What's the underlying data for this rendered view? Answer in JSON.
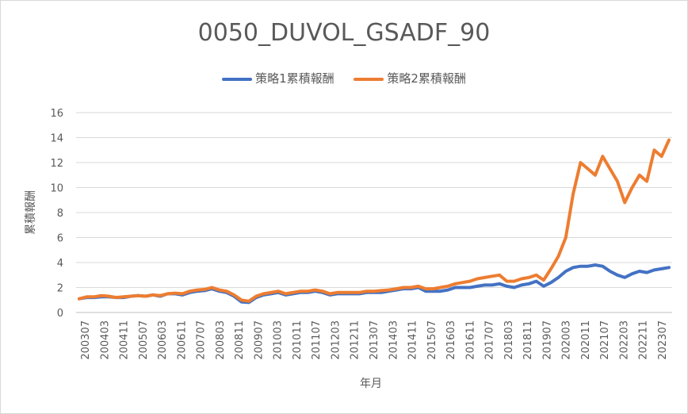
{
  "chart_data": {
    "type": "line",
    "title": "0050_DUVOL_GSADF_90",
    "xlabel": "年月",
    "ylabel": "累積報酬",
    "ylim": [
      0,
      16
    ],
    "yticks": [
      "0",
      "2",
      "4",
      "6",
      "8",
      "10",
      "12",
      "14",
      "16"
    ],
    "xticks": [
      "200307",
      "200403",
      "200411",
      "200507",
      "200603",
      "200611",
      "200707",
      "200803",
      "200811",
      "200907",
      "201003",
      "201011",
      "201107",
      "201203",
      "201211",
      "201307",
      "201403",
      "201411",
      "201507",
      "201603",
      "201611",
      "201707",
      "201803",
      "201811",
      "201907",
      "202003",
      "202011",
      "202107",
      "202203",
      "202211",
      "202307"
    ],
    "grid": true,
    "legend_position": "top",
    "series": [
      {
        "name": "策略1累積報酬",
        "color": "#4472c4",
        "values": [
          1.1,
          1.2,
          1.2,
          1.25,
          1.25,
          1.2,
          1.2,
          1.3,
          1.35,
          1.3,
          1.4,
          1.3,
          1.5,
          1.5,
          1.4,
          1.6,
          1.7,
          1.75,
          1.9,
          1.7,
          1.6,
          1.3,
          0.85,
          0.8,
          1.2,
          1.4,
          1.5,
          1.6,
          1.4,
          1.5,
          1.6,
          1.6,
          1.7,
          1.6,
          1.4,
          1.5,
          1.5,
          1.5,
          1.5,
          1.6,
          1.6,
          1.6,
          1.7,
          1.8,
          1.9,
          1.9,
          2.0,
          1.7,
          1.7,
          1.7,
          1.8,
          2.0,
          2.0,
          2.0,
          2.1,
          2.2,
          2.2,
          2.3,
          2.1,
          2.0,
          2.2,
          2.3,
          2.5,
          2.1,
          2.4,
          2.8,
          3.3,
          3.6,
          3.7,
          3.7,
          3.8,
          3.7,
          3.3,
          3.0,
          2.8,
          3.1,
          3.3,
          3.2,
          3.4,
          3.5,
          3.6
        ]
      },
      {
        "name": "策略2累積報酬",
        "color": "#ed7d31",
        "values": [
          1.1,
          1.25,
          1.25,
          1.35,
          1.3,
          1.2,
          1.25,
          1.3,
          1.35,
          1.3,
          1.4,
          1.35,
          1.5,
          1.55,
          1.5,
          1.7,
          1.8,
          1.85,
          2.0,
          1.8,
          1.7,
          1.4,
          1.0,
          0.9,
          1.3,
          1.5,
          1.6,
          1.7,
          1.5,
          1.6,
          1.7,
          1.7,
          1.8,
          1.7,
          1.5,
          1.6,
          1.6,
          1.6,
          1.6,
          1.7,
          1.7,
          1.75,
          1.8,
          1.9,
          2.0,
          2.0,
          2.1,
          1.9,
          1.9,
          2.0,
          2.1,
          2.3,
          2.4,
          2.5,
          2.7,
          2.8,
          2.9,
          3.0,
          2.5,
          2.5,
          2.7,
          2.8,
          3.0,
          2.6,
          3.5,
          4.5,
          6.0,
          9.5,
          12.0,
          11.5,
          11.0,
          12.5,
          11.5,
          10.5,
          8.8,
          10.0,
          11.0,
          10.5,
          13.0,
          12.5,
          13.8
        ]
      }
    ]
  }
}
